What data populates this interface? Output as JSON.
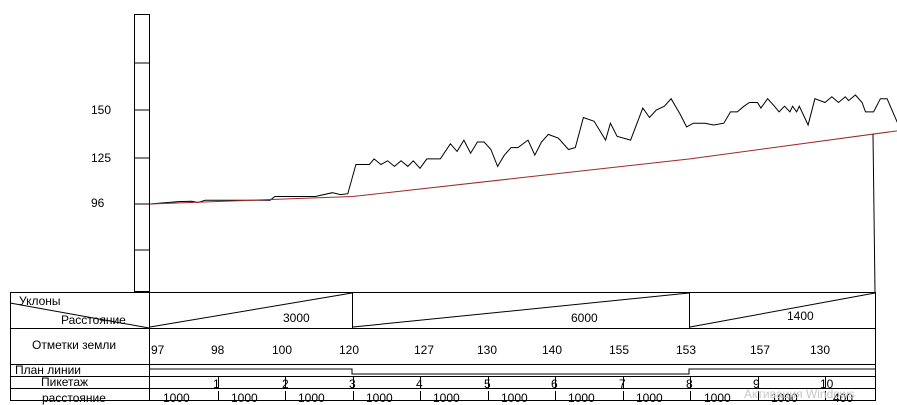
{
  "chart_data": {
    "type": "line",
    "y_ticks": [
      "150",
      "125",
      "96"
    ],
    "series": [
      {
        "color": "#000000",
        "points": [
          [
            0,
            96
          ],
          [
            0.42,
            97.3
          ],
          [
            0.62,
            97.5
          ],
          [
            0.71,
            96.8
          ],
          [
            0.82,
            98
          ],
          [
            1,
            98
          ],
          [
            1.55,
            98
          ],
          [
            1.78,
            98
          ],
          [
            1.85,
            100
          ],
          [
            2.3,
            100
          ],
          [
            2.45,
            100
          ],
          [
            2.7,
            102
          ],
          [
            2.82,
            101
          ],
          [
            2.93,
            101.5
          ],
          [
            3.05,
            117
          ],
          [
            3.25,
            117
          ],
          [
            3.32,
            120
          ],
          [
            3.42,
            117
          ],
          [
            3.52,
            119
          ],
          [
            3.62,
            116
          ],
          [
            3.72,
            119
          ],
          [
            3.82,
            116
          ],
          [
            3.9,
            119
          ],
          [
            4,
            115
          ],
          [
            4.1,
            120
          ],
          [
            4.3,
            120
          ],
          [
            4.45,
            128
          ],
          [
            4.55,
            124
          ],
          [
            4.65,
            130
          ],
          [
            4.75,
            123
          ],
          [
            4.85,
            129
          ],
          [
            4.95,
            129
          ],
          [
            5.05,
            125
          ],
          [
            5.15,
            116
          ],
          [
            5.25,
            122
          ],
          [
            5.35,
            126
          ],
          [
            5.45,
            126
          ],
          [
            5.6,
            130
          ],
          [
            5.7,
            122
          ],
          [
            5.8,
            129
          ],
          [
            5.9,
            133
          ],
          [
            6.05,
            131
          ],
          [
            6.2,
            125
          ],
          [
            6.3,
            126
          ],
          [
            6.42,
            142
          ],
          [
            6.58,
            140
          ],
          [
            6.75,
            130
          ],
          [
            6.82,
            139
          ],
          [
            6.92,
            132
          ],
          [
            7.12,
            130
          ],
          [
            7.3,
            147
          ],
          [
            7.4,
            142
          ],
          [
            7.5,
            146
          ],
          [
            7.62,
            148
          ],
          [
            7.72,
            152
          ],
          [
            7.85,
            144
          ],
          [
            7.95,
            137
          ],
          [
            8.05,
            139
          ],
          [
            8.22,
            139
          ],
          [
            8.35,
            138
          ],
          [
            8.5,
            139
          ],
          [
            8.6,
            145
          ],
          [
            8.7,
            145
          ],
          [
            8.8,
            148
          ],
          [
            8.88,
            150
          ],
          [
            9,
            150
          ],
          [
            9.05,
            147
          ],
          [
            9.15,
            152
          ],
          [
            9.25,
            148
          ],
          [
            9.32,
            145
          ],
          [
            9.4,
            148
          ],
          [
            9.48,
            145
          ],
          [
            9.52,
            148
          ],
          [
            9.58,
            145
          ],
          [
            9.62,
            148
          ],
          [
            9.75,
            138
          ],
          [
            9.85,
            152
          ],
          [
            10,
            150
          ],
          [
            10.1,
            153
          ],
          [
            10.2,
            150
          ],
          [
            10.3,
            153
          ],
          [
            10.35,
            151
          ],
          [
            10.45,
            154
          ],
          [
            10.55,
            150
          ],
          [
            10.6,
            145
          ],
          [
            10.72,
            145
          ],
          [
            10.82,
            152
          ],
          [
            10.92,
            152
          ],
          [
            10.98,
            147
          ],
          [
            11.1,
            137
          ],
          [
            11.2,
            135
          ],
          [
            11.32,
            136
          ],
          [
            11.45,
            137
          ],
          [
            11.5,
            137
          ]
        ]
      },
      {
        "color": "#a02828",
        "points": [
          [
            0,
            96
          ],
          [
            3,
            100
          ],
          [
            8,
            120
          ],
          [
            11.5,
            137
          ]
        ]
      }
    ]
  },
  "table": {
    "row_labels": {
      "slopes": "Уклоны",
      "distance": "Расстояние",
      "ground_marks": "Отметки земли",
      "line_plan": "План линии",
      "picket": "Пикетаж",
      "spacing": "расстояние"
    },
    "slopes": [
      "3000",
      "6000",
      "1400"
    ],
    "ground_marks": [
      "97",
      "98",
      "100",
      "120",
      "127",
      "130",
      "140",
      "155",
      "153",
      "157",
      "130"
    ],
    "pickets": [
      "1",
      "2",
      "3",
      "4",
      "5",
      "6",
      "7",
      "8",
      "9",
      "10"
    ],
    "distances": [
      "1000",
      "1000",
      "1000",
      "1000",
      "1000",
      "1000",
      "1000",
      "1000",
      "1000",
      "1000",
      "400"
    ]
  },
  "watermark": "Активация Windows"
}
